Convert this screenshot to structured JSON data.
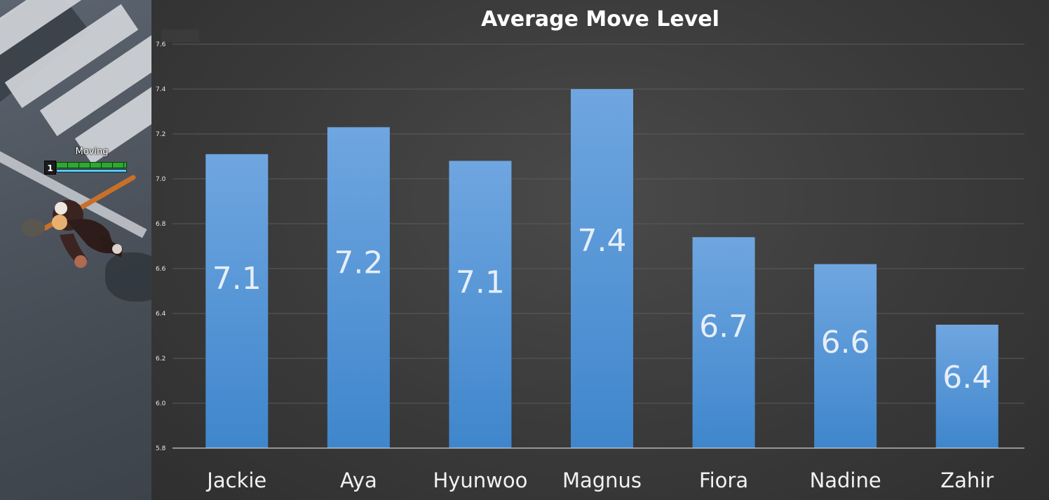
{
  "game": {
    "unit_status": "Moving",
    "unit_level": "1",
    "hp_fraction": 1.0,
    "colors": {
      "hp": "#2ea82e",
      "sp": "#5bc8ea"
    }
  },
  "chart_data": {
    "type": "bar",
    "title": "Average Move Level",
    "xlabel": "",
    "ylabel": "",
    "categories": [
      "Jackie",
      "Aya",
      "Hyunwoo",
      "Magnus",
      "Fiora",
      "Nadine",
      "Zahir"
    ],
    "values": [
      7.11,
      7.23,
      7.08,
      7.4,
      6.74,
      6.62,
      6.35
    ],
    "data_labels": [
      "7.1",
      "7.2",
      "7.1",
      "7.4",
      "6.7",
      "6.6",
      "6.4"
    ],
    "ylim": [
      5.8,
      7.6
    ],
    "yticks": [
      "5.8",
      "6.0",
      "6.2",
      "6.4",
      "6.6",
      "6.8",
      "7.0",
      "7.2",
      "7.4",
      "7.6"
    ],
    "grid": true,
    "legend": "none",
    "colors": {
      "bar_top": "#6fa6e0",
      "bar_bottom": "#3f86cc"
    }
  }
}
